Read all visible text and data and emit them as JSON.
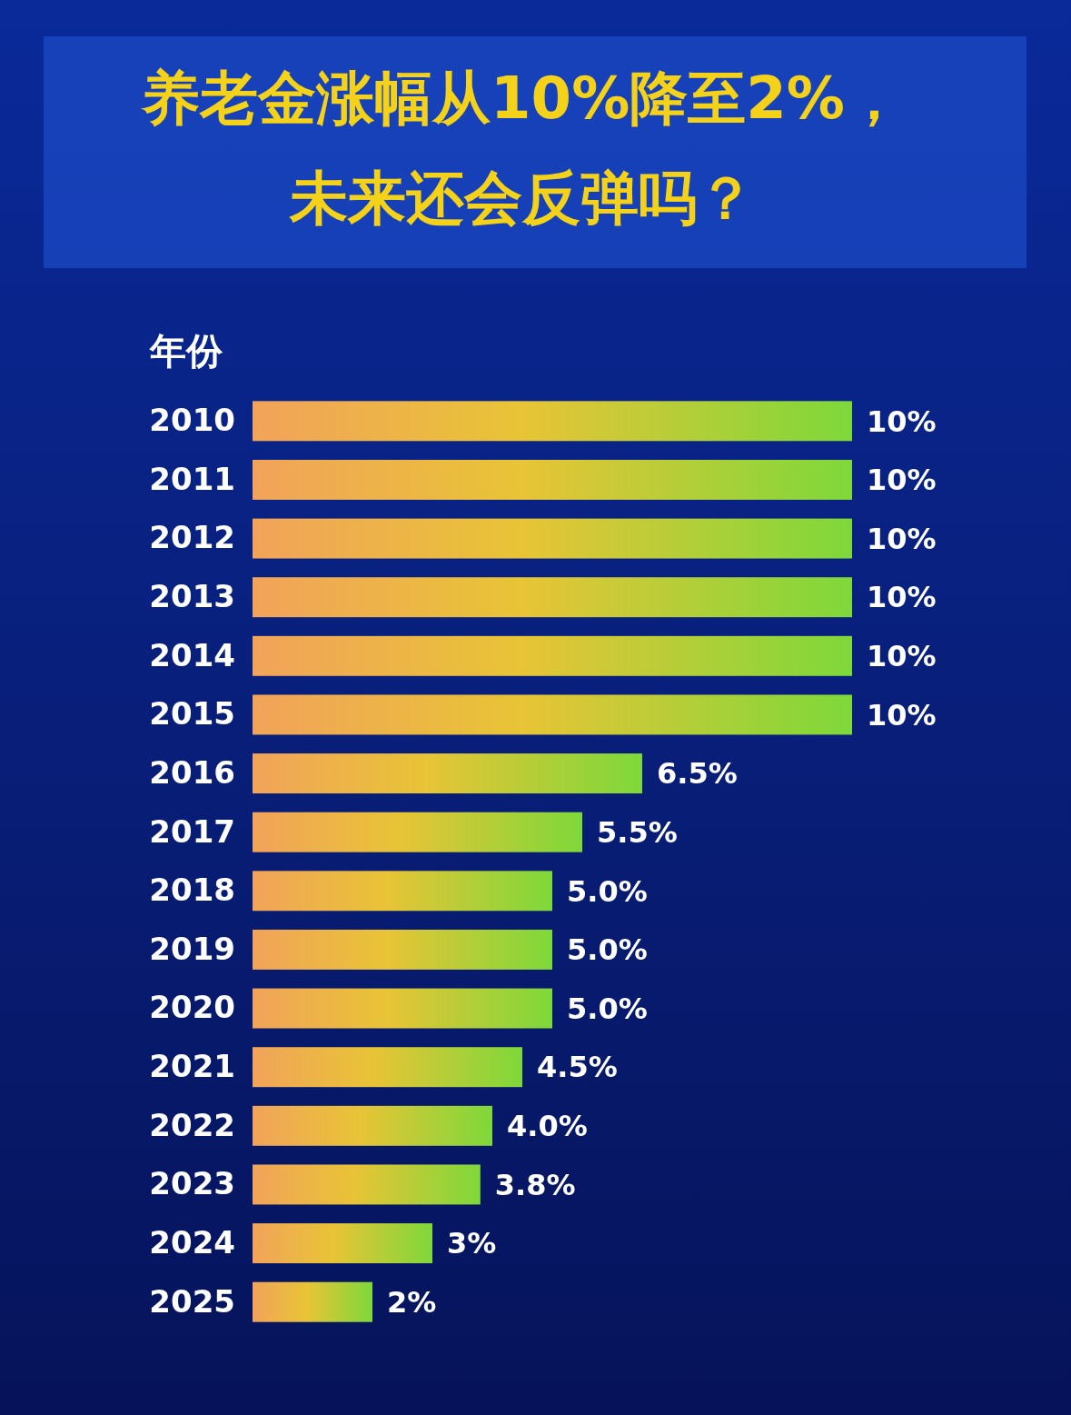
{
  "chart_data": {
    "type": "bar",
    "orientation": "horizontal",
    "title": "养老金涨幅从10%降至2%，未来还会反弹吗？",
    "ylabel": "年份",
    "categories": [
      "2010",
      "2011",
      "2012",
      "2013",
      "2014",
      "2015",
      "2016",
      "2017",
      "2018",
      "2019",
      "2020",
      "2021",
      "2022",
      "2023",
      "2024",
      "2025"
    ],
    "values": [
      10,
      10,
      10,
      10,
      10,
      10,
      6.5,
      5.5,
      5,
      5,
      5,
      4.5,
      4,
      3.8,
      3,
      2
    ],
    "value_labels": [
      "10%",
      "10%",
      "10%",
      "10%",
      "10%",
      "10%",
      "6.5%",
      "5.5%",
      "5.0%",
      "5.0%",
      "5.0%",
      "4.5%",
      "4.0%",
      "3.8%",
      "3%",
      "2%"
    ],
    "color": "#7ed83a"
  }
}
